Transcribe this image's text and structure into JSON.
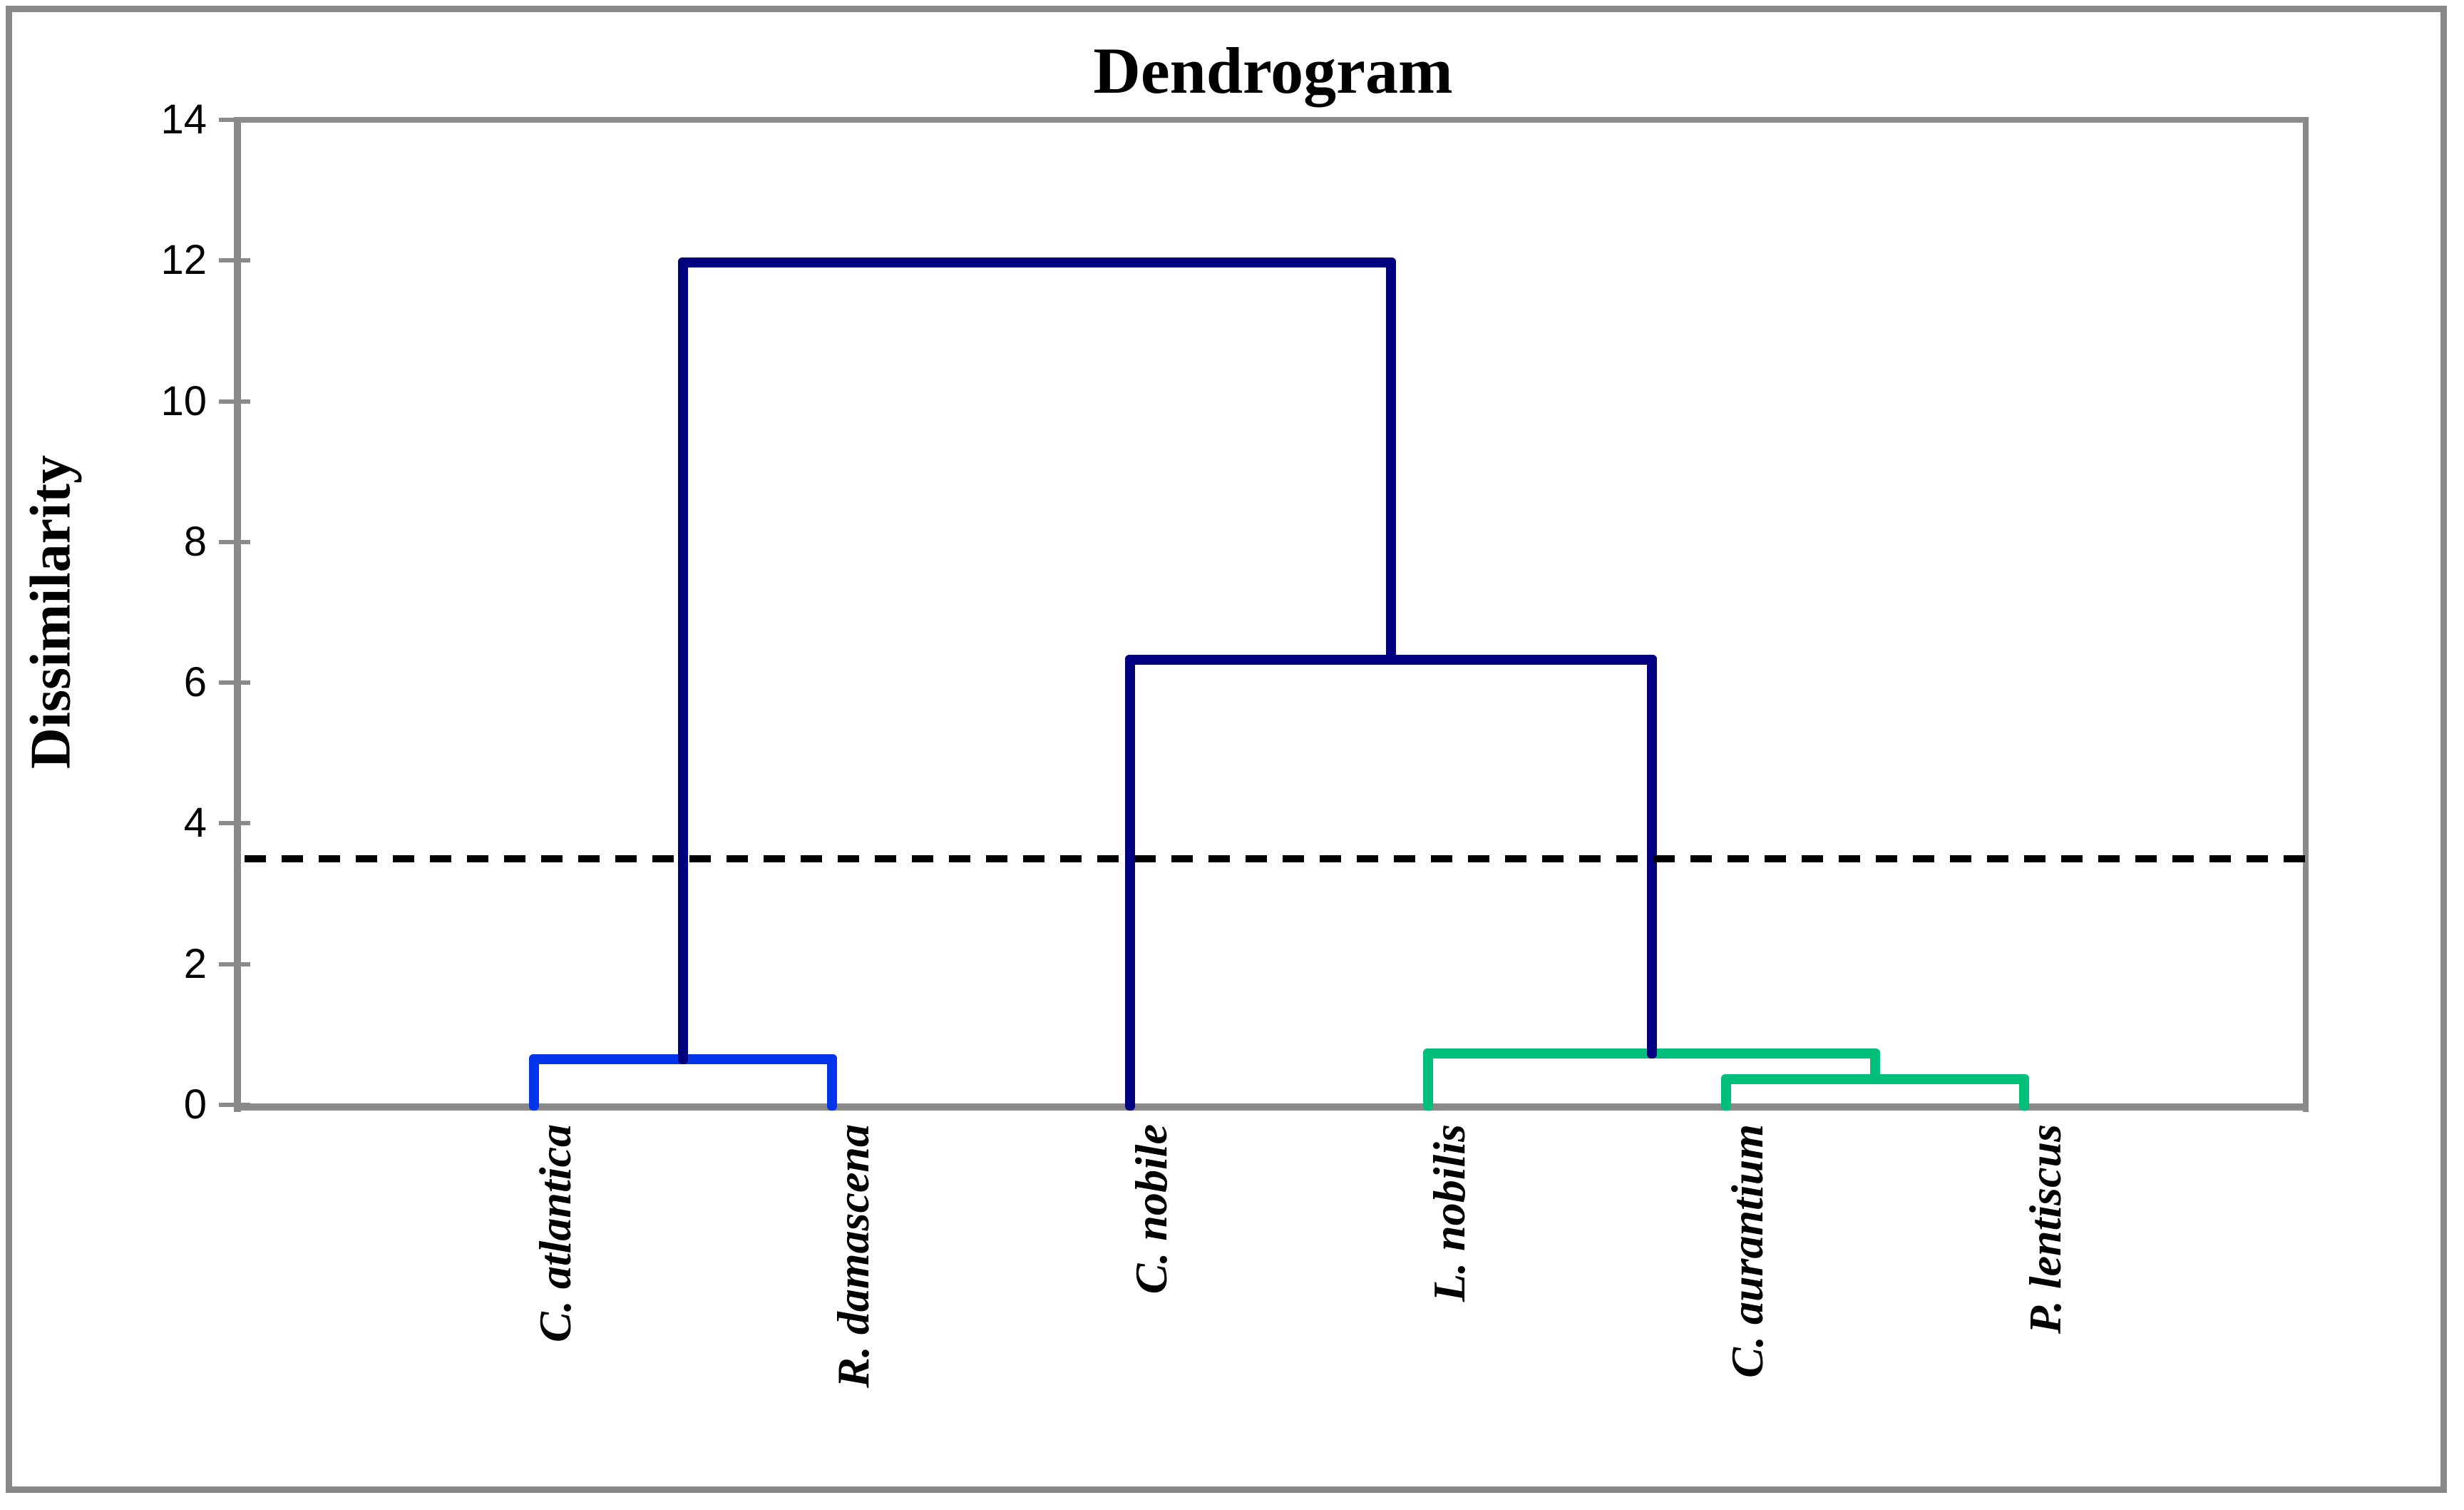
{
  "chart_data": {
    "type": "dendrogram",
    "title": "Dendrogram",
    "ylabel": "Dissimilarity",
    "ylim": [
      0,
      14
    ],
    "yticks": [
      0,
      2,
      4,
      6,
      8,
      10,
      12,
      14
    ],
    "grid": false,
    "leaves": [
      "C. atlantica",
      "R. damascena",
      "C. nobile",
      "L. nobilis",
      "C. aurantium",
      "P. lentiscus"
    ],
    "merges": [
      {
        "name": "cluster-atlantica-damascena",
        "left": "C. atlantica",
        "right": "R. damascena",
        "height": 0.65,
        "color": "#0535e8"
      },
      {
        "name": "cluster-aurantium-lentiscus",
        "left": "C. aurantium",
        "right": "P. lentiscus",
        "height": 0.37,
        "color": "#00bf7a"
      },
      {
        "name": "cluster-green-outer",
        "left": "L. nobilis",
        "right": "cluster-aurantium-lentiscus",
        "height": 0.73,
        "color": "#00bf7a"
      },
      {
        "name": "cluster-navy-mid",
        "left": "C. nobile",
        "right": "cluster-green-outer",
        "height": 6.33,
        "color": "#010180"
      },
      {
        "name": "root",
        "left": "cluster-atlantica-damascena",
        "right": "cluster-navy-mid",
        "height": 11.97,
        "color": "#010180"
      }
    ],
    "threshold_line": {
      "value": 3.5,
      "color": "#000000",
      "style": "dashed"
    },
    "colors": {
      "axis": "#8a8a8a",
      "frame": "#888888",
      "pair_cluster_blue": "#0535e8",
      "green_cluster": "#00bf7a",
      "trunk_navy": "#010180",
      "text": "#000000",
      "background": "#ffffff"
    }
  }
}
